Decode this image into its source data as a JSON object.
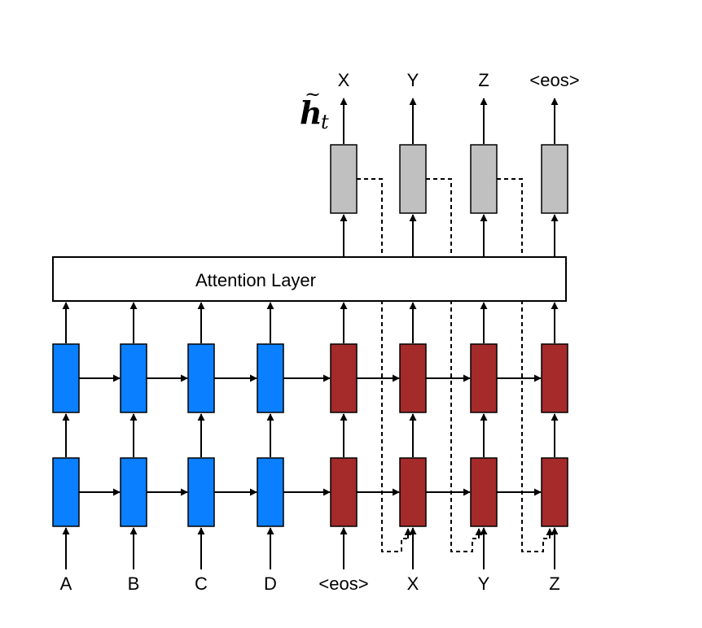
{
  "diagram": {
    "attention_layer_label": "Attention Layer",
    "hidden_state_label": "h",
    "hidden_state_subscript": "t",
    "hidden_state_accent": "~",
    "encoder_inputs": [
      "A",
      "B",
      "C",
      "D"
    ],
    "decoder_inputs": [
      "<eos>",
      "X",
      "Y",
      "Z"
    ],
    "decoder_outputs": [
      "X",
      "Y",
      "Z",
      "<eos>"
    ],
    "colors": {
      "encoder": "#0a7fff",
      "decoder": "#a52a2a",
      "attentional": "#c0c0c0",
      "stroke": "#000000"
    }
  }
}
